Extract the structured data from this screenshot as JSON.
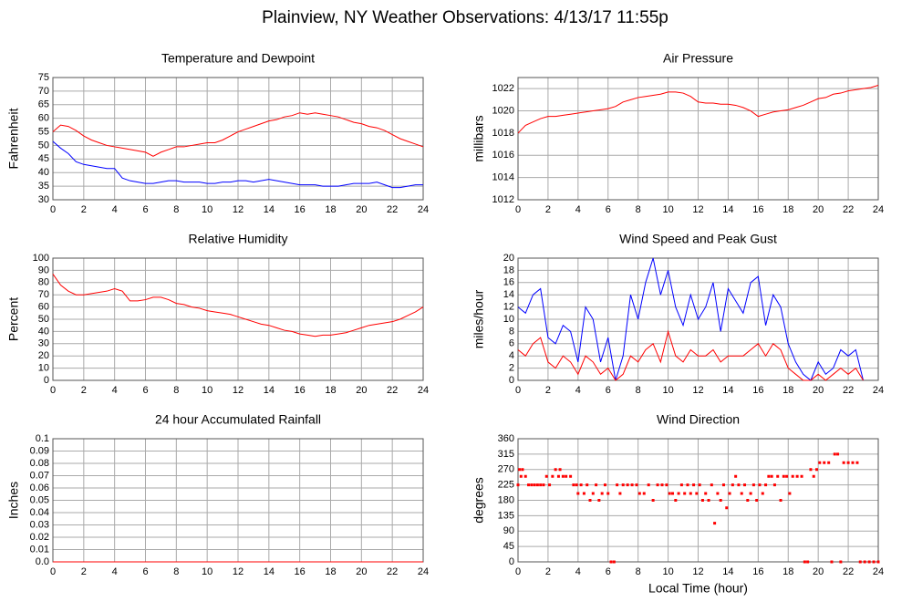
{
  "title": "Plainview, NY Weather Observations: 4/13/17 11:55p",
  "chart_data": [
    {
      "type": "line",
      "title": "Temperature and Dewpoint",
      "ylabel": "Fahrenheit",
      "x": [
        0,
        0.5,
        1,
        1.5,
        2,
        2.5,
        3,
        3.5,
        4,
        4.5,
        5,
        5.5,
        6,
        6.5,
        7,
        7.5,
        8,
        8.5,
        9,
        9.5,
        10,
        10.5,
        11,
        11.5,
        12,
        12.5,
        13,
        13.5,
        14,
        14.5,
        15,
        15.5,
        16,
        16.5,
        17,
        17.5,
        18,
        18.5,
        19,
        19.5,
        20,
        20.5,
        21,
        21.5,
        22,
        22.5,
        23,
        23.5,
        24
      ],
      "series": [
        {
          "color": "#ff0000",
          "values": [
            55,
            57.5,
            57,
            55.5,
            53.5,
            52,
            51,
            50,
            49.5,
            49,
            48.5,
            48,
            47.5,
            46,
            47.5,
            48.5,
            49.5,
            49.5,
            50,
            50.5,
            51,
            51,
            52,
            53.5,
            55,
            56,
            57,
            58,
            59,
            59.5,
            60.5,
            61,
            62,
            61.5,
            62,
            61.5,
            61,
            60.5,
            59.5,
            58.5,
            58,
            57,
            56.5,
            55.5,
            54,
            52.5,
            51.5,
            50.5,
            49.5
          ]
        },
        {
          "color": "#0000ff",
          "values": [
            51.5,
            49,
            47,
            44,
            43,
            42.5,
            42,
            41.5,
            41.5,
            38,
            37,
            36.5,
            36,
            36,
            36.5,
            37,
            37,
            36.5,
            36.5,
            36.5,
            36,
            36,
            36.5,
            36.5,
            37,
            37,
            36.5,
            37,
            37.5,
            37,
            36.5,
            36,
            35.5,
            35.5,
            35.5,
            35,
            35,
            35,
            35.5,
            36,
            36,
            36,
            36.5,
            35.5,
            34.5,
            34.5,
            35,
            35.5,
            35.5
          ]
        }
      ],
      "xlim": [
        0,
        24
      ],
      "xticks": [
        0,
        2,
        4,
        6,
        8,
        10,
        12,
        14,
        16,
        18,
        20,
        22,
        24
      ],
      "ylim": [
        30,
        75
      ],
      "yticks": [
        30,
        35,
        40,
        45,
        50,
        55,
        60,
        65,
        70,
        75
      ],
      "grid": true
    },
    {
      "type": "line",
      "title": "Air Pressure",
      "ylabel": "millibars",
      "x": [
        0,
        0.5,
        1,
        1.5,
        2,
        2.5,
        3,
        3.5,
        4,
        4.5,
        5,
        5.5,
        6,
        6.5,
        7,
        7.5,
        8,
        8.5,
        9,
        9.5,
        10,
        10.5,
        11,
        11.5,
        12,
        12.5,
        13,
        13.5,
        14,
        14.5,
        15,
        15.5,
        16,
        16.5,
        17,
        17.5,
        18,
        18.5,
        19,
        19.5,
        20,
        20.5,
        21,
        21.5,
        22,
        22.5,
        23,
        23.5,
        24
      ],
      "series": [
        {
          "color": "#ff0000",
          "values": [
            1018,
            1018.7,
            1019,
            1019.3,
            1019.5,
            1019.5,
            1019.6,
            1019.7,
            1019.8,
            1019.9,
            1020,
            1020.1,
            1020.2,
            1020.4,
            1020.8,
            1021,
            1021.2,
            1021.3,
            1021.4,
            1021.5,
            1021.7,
            1021.7,
            1021.6,
            1021.3,
            1020.8,
            1020.7,
            1020.7,
            1020.6,
            1020.6,
            1020.5,
            1020.3,
            1020,
            1019.5,
            1019.7,
            1019.9,
            1020,
            1020.1,
            1020.3,
            1020.5,
            1020.8,
            1021.1,
            1021.2,
            1021.5,
            1021.6,
            1021.8,
            1021.9,
            1022,
            1022.1,
            1022.3
          ]
        }
      ],
      "xlim": [
        0,
        24
      ],
      "xticks": [
        0,
        2,
        4,
        6,
        8,
        10,
        12,
        14,
        16,
        18,
        20,
        22,
        24
      ],
      "ylim": [
        1012,
        1023
      ],
      "yticks": [
        1012,
        1014,
        1016,
        1018,
        1020,
        1022
      ],
      "grid": true
    },
    {
      "type": "line",
      "title": "Relative Humidity",
      "ylabel": "Percent",
      "x": [
        0,
        0.5,
        1,
        1.5,
        2,
        2.5,
        3,
        3.5,
        4,
        4.5,
        5,
        5.5,
        6,
        6.5,
        7,
        7.5,
        8,
        8.5,
        9,
        9.5,
        10,
        10.5,
        11,
        11.5,
        12,
        12.5,
        13,
        13.5,
        14,
        14.5,
        15,
        15.5,
        16,
        16.5,
        17,
        17.5,
        18,
        18.5,
        19,
        19.5,
        20,
        20.5,
        21,
        21.5,
        22,
        22.5,
        23,
        23.5,
        24
      ],
      "series": [
        {
          "color": "#ff0000",
          "values": [
            87,
            78,
            73,
            70,
            70,
            71,
            72,
            73,
            75,
            73,
            65,
            65,
            66,
            68,
            68,
            66,
            63,
            62,
            60,
            59,
            57,
            56,
            55,
            54,
            52,
            50,
            48,
            46,
            45,
            43,
            41,
            40,
            38,
            37,
            36,
            37,
            37,
            38,
            39,
            41,
            43,
            45,
            46,
            47,
            48,
            50,
            53,
            56,
            60
          ]
        }
      ],
      "xlim": [
        0,
        24
      ],
      "xticks": [
        0,
        2,
        4,
        6,
        8,
        10,
        12,
        14,
        16,
        18,
        20,
        22,
        24
      ],
      "ylim": [
        0,
        100
      ],
      "yticks": [
        0,
        10,
        20,
        30,
        40,
        50,
        60,
        70,
        80,
        90,
        100
      ],
      "grid": true
    },
    {
      "type": "line",
      "title": "Wind Speed and Peak Gust",
      "ylabel": "miles/hour",
      "x": [
        0,
        0.5,
        1,
        1.5,
        2,
        2.5,
        3,
        3.5,
        4,
        4.5,
        5,
        5.5,
        6,
        6.5,
        7,
        7.5,
        8,
        8.5,
        9,
        9.5,
        10,
        10.5,
        11,
        11.5,
        12,
        12.5,
        13,
        13.5,
        14,
        14.5,
        15,
        15.5,
        16,
        16.5,
        17,
        17.5,
        18,
        18.5,
        19,
        19.5,
        20,
        20.5,
        21,
        21.5,
        22,
        22.5,
        23,
        23.5,
        24
      ],
      "series": [
        {
          "color": "#0000ff",
          "values": [
            12,
            11,
            14,
            15,
            7,
            6,
            9,
            8,
            3,
            12,
            10,
            3,
            7,
            0,
            4,
            14,
            10,
            16,
            20,
            14,
            18,
            12,
            9,
            14,
            10,
            12,
            16,
            8,
            15,
            13,
            11,
            16,
            17,
            9,
            14,
            12,
            6,
            3,
            1,
            0,
            3,
            1,
            2,
            5,
            4,
            5,
            0,
            null,
            null
          ]
        },
        {
          "color": "#ff0000",
          "values": [
            5,
            4,
            6,
            7,
            3,
            2,
            4,
            3,
            1,
            4,
            3,
            1,
            2,
            0,
            1,
            4,
            3,
            5,
            6,
            3,
            8,
            4,
            3,
            5,
            4,
            4,
            5,
            3,
            4,
            4,
            4,
            5,
            6,
            4,
            6,
            5,
            2,
            1,
            0,
            0,
            1,
            0,
            1,
            2,
            1,
            2,
            0,
            null,
            null
          ]
        }
      ],
      "xlim": [
        0,
        24
      ],
      "xticks": [
        0,
        2,
        4,
        6,
        8,
        10,
        12,
        14,
        16,
        18,
        20,
        22,
        24
      ],
      "ylim": [
        0,
        20
      ],
      "yticks": [
        0,
        2,
        4,
        6,
        8,
        10,
        12,
        14,
        16,
        18,
        20
      ],
      "grid": true
    },
    {
      "type": "line",
      "title": "24 hour Accumulated Rainfall",
      "ylabel": "Inches",
      "x": [
        0,
        24
      ],
      "series": [
        {
          "color": "#ff0000",
          "values": [
            0,
            0
          ]
        }
      ],
      "xlim": [
        0,
        24
      ],
      "xticks": [
        0,
        2,
        4,
        6,
        8,
        10,
        12,
        14,
        16,
        18,
        20,
        22,
        24
      ],
      "ylim": [
        0,
        0.1
      ],
      "yticks": [
        {
          "value": 0,
          "label": "0.0"
        },
        0.01,
        0.02,
        0.03,
        0.04,
        0.05,
        0.06,
        0.07,
        0.08,
        0.09,
        0.1
      ],
      "grid": true
    },
    {
      "type": "scatter",
      "title": "Wind Direction",
      "ylabel": "degrees",
      "xlabel": "Local Time (hour)",
      "x": [
        0,
        0.1,
        0.2,
        0.3,
        0.5,
        0.7,
        0.9,
        1.1,
        1.3,
        1.5,
        1.7,
        1.9,
        2.1,
        2.3,
        2.5,
        2.7,
        2.8,
        3.0,
        3.2,
        3.5,
        3.7,
        3.9,
        4.0,
        4.2,
        4.4,
        4.6,
        4.8,
        5.0,
        5.2,
        5.4,
        5.6,
        5.8,
        6.0,
        6.2,
        6.4,
        6.6,
        6.8,
        7.0,
        7.3,
        7.6,
        7.9,
        8.1,
        8.4,
        8.7,
        9.0,
        9.3,
        9.6,
        9.9,
        10.1,
        10.3,
        10.5,
        10.7,
        10.9,
        11.1,
        11.3,
        11.5,
        11.7,
        11.9,
        12.1,
        12.3,
        12.5,
        12.7,
        12.9,
        13.1,
        13.3,
        13.5,
        13.7,
        13.9,
        14.1,
        14.3,
        14.5,
        14.7,
        14.9,
        15.1,
        15.3,
        15.5,
        15.7,
        15.9,
        16.1,
        16.3,
        16.5,
        16.7,
        16.9,
        17.1,
        17.3,
        17.5,
        17.7,
        17.9,
        18.1,
        18.3,
        18.6,
        18.9,
        19.1,
        19.3,
        19.5,
        19.7,
        19.9,
        20.1,
        20.4,
        20.7,
        20.9,
        21.1,
        21.3,
        21.5,
        21.7,
        22.0,
        22.3,
        22.6,
        22.8,
        23.1,
        23.4,
        23.7,
        24.0
      ],
      "series": [
        {
          "color": "#ff0000",
          "values": [
            225,
            270,
            250,
            270,
            250,
            225,
            225,
            225,
            225,
            225,
            225,
            250,
            225,
            250,
            270,
            250,
            270,
            250,
            250,
            250,
            225,
            225,
            200,
            225,
            200,
            225,
            180,
            200,
            225,
            180,
            200,
            225,
            200,
            0,
            0,
            225,
            200,
            225,
            225,
            225,
            225,
            200,
            200,
            225,
            180,
            225,
            225,
            225,
            200,
            200,
            180,
            200,
            225,
            200,
            225,
            200,
            225,
            200,
            225,
            180,
            200,
            180,
            225,
            113,
            200,
            180,
            225,
            158,
            200,
            225,
            250,
            225,
            200,
            225,
            180,
            200,
            225,
            180,
            225,
            200,
            225,
            250,
            250,
            225,
            250,
            180,
            250,
            250,
            200,
            250,
            250,
            250,
            0,
            0,
            270,
            250,
            270,
            290,
            290,
            290,
            0,
            315,
            315,
            0,
            290,
            290,
            290,
            290,
            0,
            0,
            0,
            0,
            0
          ]
        }
      ],
      "xlim": [
        0,
        24
      ],
      "xticks": [
        0,
        2,
        4,
        6,
        8,
        10,
        12,
        14,
        16,
        18,
        20,
        22,
        24
      ],
      "ylim": [
        0,
        360
      ],
      "yticks": [
        0,
        45,
        90,
        135,
        180,
        225,
        270,
        315,
        360
      ],
      "grid": true
    }
  ]
}
